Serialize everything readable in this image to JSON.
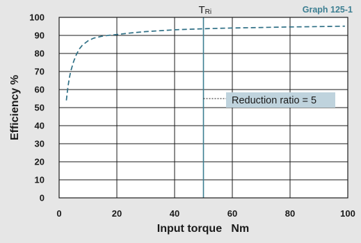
{
  "chart_data": {
    "type": "line",
    "graph_id": "Graph 125-1",
    "xlabel": "Input torque   Nm",
    "ylabel": "Efficiency %",
    "xlim": [
      0,
      100
    ],
    "ylim": [
      0,
      100
    ],
    "x_ticks": [
      0,
      20,
      40,
      60,
      80,
      100
    ],
    "y_ticks": [
      0,
      10,
      20,
      30,
      40,
      50,
      60,
      70,
      80,
      90,
      100
    ],
    "grid": true,
    "series": [
      {
        "line_style": "dashed",
        "color": "#2e6f85",
        "x": [
          2.5,
          3,
          3.5,
          4,
          5,
          6,
          7,
          8,
          10,
          12,
          15,
          18,
          20,
          25,
          30,
          40,
          50,
          60,
          70,
          80,
          90,
          99
        ],
        "y": [
          54,
          61,
          66,
          70,
          75.5,
          79.5,
          82.5,
          84.5,
          87,
          88.5,
          89.6,
          90.2,
          90.5,
          91.4,
          92.1,
          93.1,
          93.7,
          94.1,
          94.4,
          94.7,
          94.9,
          95.1
        ]
      }
    ],
    "reference_line": {
      "x": 50,
      "label_main": "T",
      "label_sub": "Ri",
      "color": "#3d7f92"
    },
    "annotation": {
      "text": "Reduction ratio = 5",
      "x": 50,
      "y": 55,
      "box_color": "#bfd3dd"
    }
  }
}
